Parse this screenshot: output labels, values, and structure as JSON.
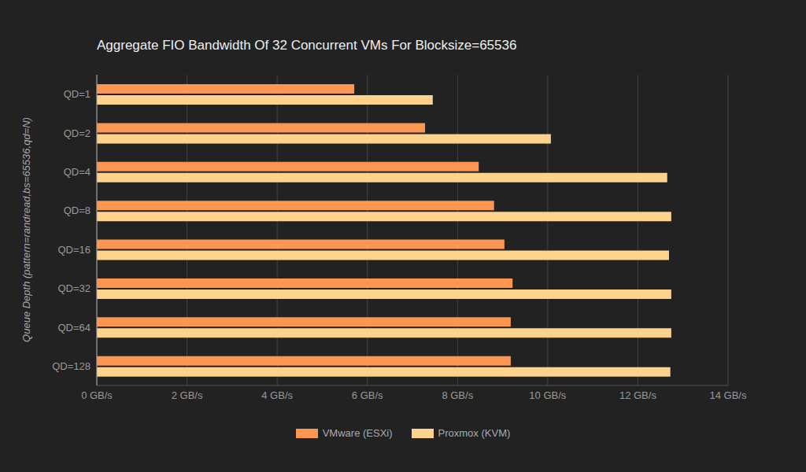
{
  "chart_data": {
    "type": "bar",
    "title": "Aggregate FIO Bandwidth Of 32 Concurrent VMs For Blocksize=65536",
    "y_label": "Queue Depth (pattern=randread,bs=65536,qd=N)",
    "orientation": "horizontal",
    "categories": [
      "QD=1",
      "QD=2",
      "QD=4",
      "QD=8",
      "QD=16",
      "QD=32",
      "QD=64",
      "QD=128"
    ],
    "series": [
      {
        "name": "VMware (ESXi)",
        "color": "#fd9650",
        "values": [
          5.71,
          7.28,
          8.47,
          8.81,
          9.04,
          9.22,
          9.18,
          9.18
        ]
      },
      {
        "name": "Proxmox (KVM)",
        "color": "#fdd38c",
        "values": [
          7.45,
          10.07,
          12.65,
          12.74,
          12.69,
          12.74,
          12.74,
          12.72
        ]
      }
    ],
    "xlim": [
      0,
      14
    ],
    "xticks": [
      {
        "value": 0,
        "label": "0 GB/s"
      },
      {
        "value": 2,
        "label": "2 GB/s"
      },
      {
        "value": 4,
        "label": "4 GB/s"
      },
      {
        "value": 6,
        "label": "6 GB/s"
      },
      {
        "value": 8,
        "label": "8 GB/s"
      },
      {
        "value": 10,
        "label": "10 GB/s"
      },
      {
        "value": 12,
        "label": "12 GB/s"
      },
      {
        "value": 14,
        "label": "14 GB/s"
      }
    ],
    "grid": true,
    "legend": "bottom"
  }
}
